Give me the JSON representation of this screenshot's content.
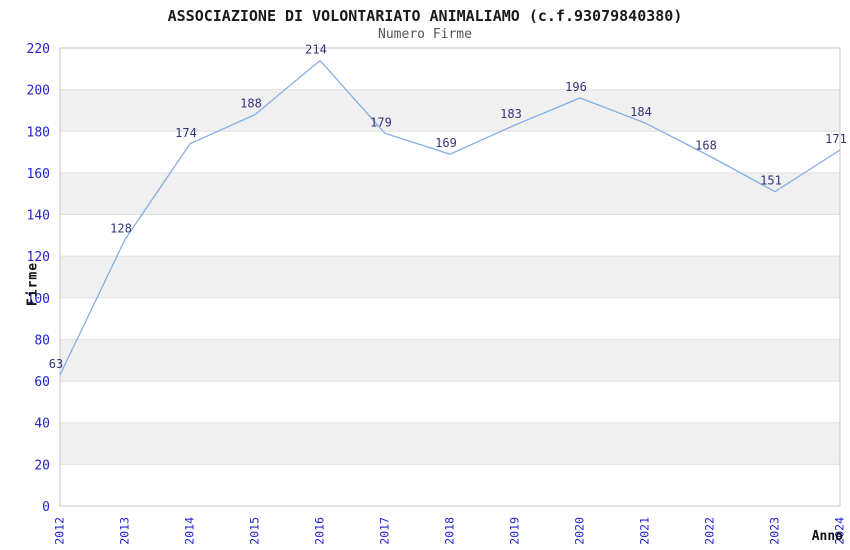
{
  "chart_data": {
    "type": "line",
    "title": "ASSOCIAZIONE DI VOLONTARIATO ANIMALIAMO (c.f.93079840380)",
    "subtitle": "Numero Firme",
    "xlabel": "Anno",
    "ylabel": "Firme",
    "x": [
      "2012",
      "2013",
      "2014",
      "2015",
      "2016",
      "2017",
      "2018",
      "2019",
      "2020",
      "2021",
      "2022",
      "2023",
      "2024"
    ],
    "values": [
      63,
      128,
      174,
      188,
      214,
      179,
      169,
      183,
      196,
      184,
      168,
      151,
      171
    ],
    "ylim": [
      0,
      220
    ],
    "ytick_step": 20,
    "grid": true,
    "legend_position": "none",
    "point_labels_visible": true,
    "colors": {
      "line": "#85aee5",
      "tick_label": "#2424cd",
      "point_label": "#333377",
      "band": "#f0f0f0",
      "gridline": "#e0e0e0",
      "plot_border": "#c6c6c6",
      "title": "#1a1a1a",
      "subtitle": "#555555"
    }
  }
}
